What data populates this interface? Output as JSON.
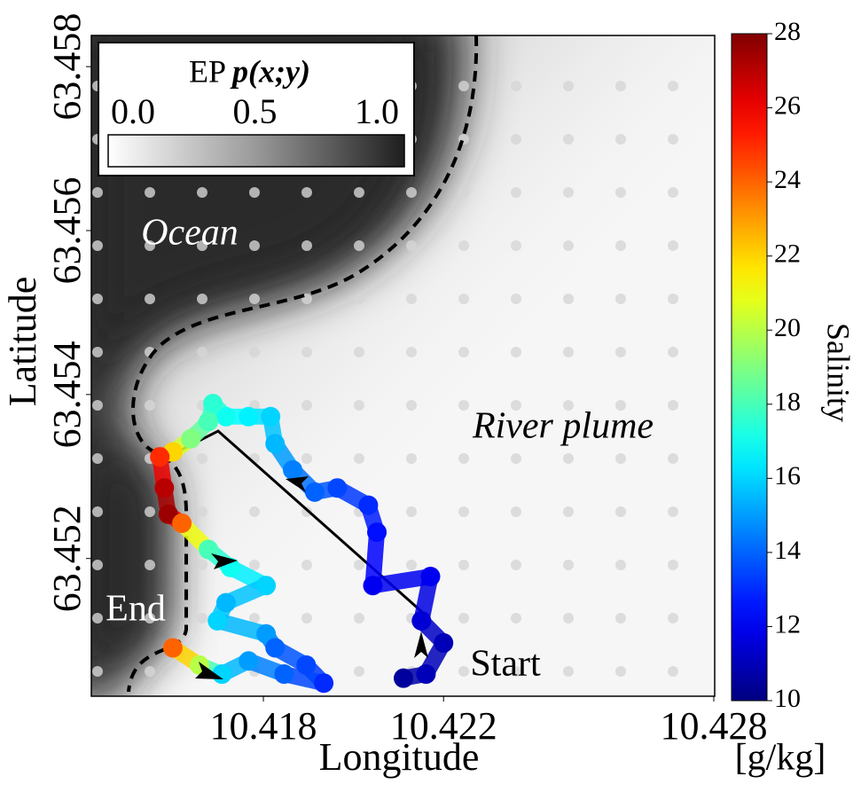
{
  "chart_data": {
    "type": "scatter",
    "xlabel": "Longitude",
    "ylabel": "Latitude",
    "xlim": [
      10.41418,
      10.42802
    ],
    "xticks": [
      10.418,
      10.422,
      10.428
    ],
    "ylim": [
      63.45032,
      63.45838
    ],
    "yticks": [
      63.452,
      63.454,
      63.456,
      63.458
    ],
    "x": [
      10.42111,
      10.42161,
      10.422,
      10.42151,
      10.42171,
      10.42043,
      10.42052,
      10.42033,
      10.41964,
      10.41914,
      10.41865,
      10.41826,
      10.41816,
      10.41767,
      10.41717,
      10.41688,
      10.41678,
      10.41639,
      10.41599,
      10.4157,
      10.4158,
      10.41589,
      10.41619,
      10.41678,
      10.41727,
      10.41806,
      10.41717,
      10.41698,
      10.41806,
      10.41826,
      10.41895,
      10.41934,
      10.41846,
      10.41767,
      10.41708,
      10.41658,
      10.41599
    ],
    "y": [
      63.45054,
      63.45059,
      63.45097,
      63.45124,
      63.45178,
      63.45167,
      63.45232,
      63.45265,
      63.45286,
      63.45281,
      63.45308,
      63.4534,
      63.45373,
      63.45373,
      63.45373,
      63.45389,
      63.45367,
      63.45346,
      63.4533,
      63.45324,
      63.45286,
      63.45254,
      63.45243,
      63.45211,
      63.45189,
      63.45167,
      63.45146,
      63.45124,
      63.45108,
      63.45091,
      63.4507,
      63.45048,
      63.45059,
      63.45075,
      63.45059,
      63.4507,
      63.45091
    ],
    "values": [
      10.5,
      11,
      11,
      11.5,
      12,
      12,
      12.5,
      13,
      13.5,
      14,
      14.5,
      15.5,
      16,
      16.5,
      17,
      17.5,
      18,
      19,
      22,
      25,
      27,
      27.5,
      24,
      18,
      17,
      16,
      15.5,
      16,
      15,
      14,
      13.5,
      13,
      14,
      15,
      16,
      20,
      24
    ],
    "colorbar": {
      "label": "Salinity",
      "unit": "[g/kg]",
      "colormap": "jet",
      "lim": [
        10,
        28
      ],
      "ticks": [
        10,
        12,
        14,
        16,
        18,
        20,
        22,
        24,
        26,
        28
      ]
    },
    "legend": {
      "title": "EP",
      "title_math": "p(x;y)",
      "lim": [
        0,
        1
      ],
      "ticks": [
        {
          "value": 0,
          "label": "0.0"
        },
        {
          "value": 0.5,
          "label": "0.5"
        },
        {
          "value": 1,
          "label": "1.0"
        }
      ]
    },
    "annotations": [
      "Ocean",
      "River plume",
      "Start",
      "End"
    ]
  }
}
